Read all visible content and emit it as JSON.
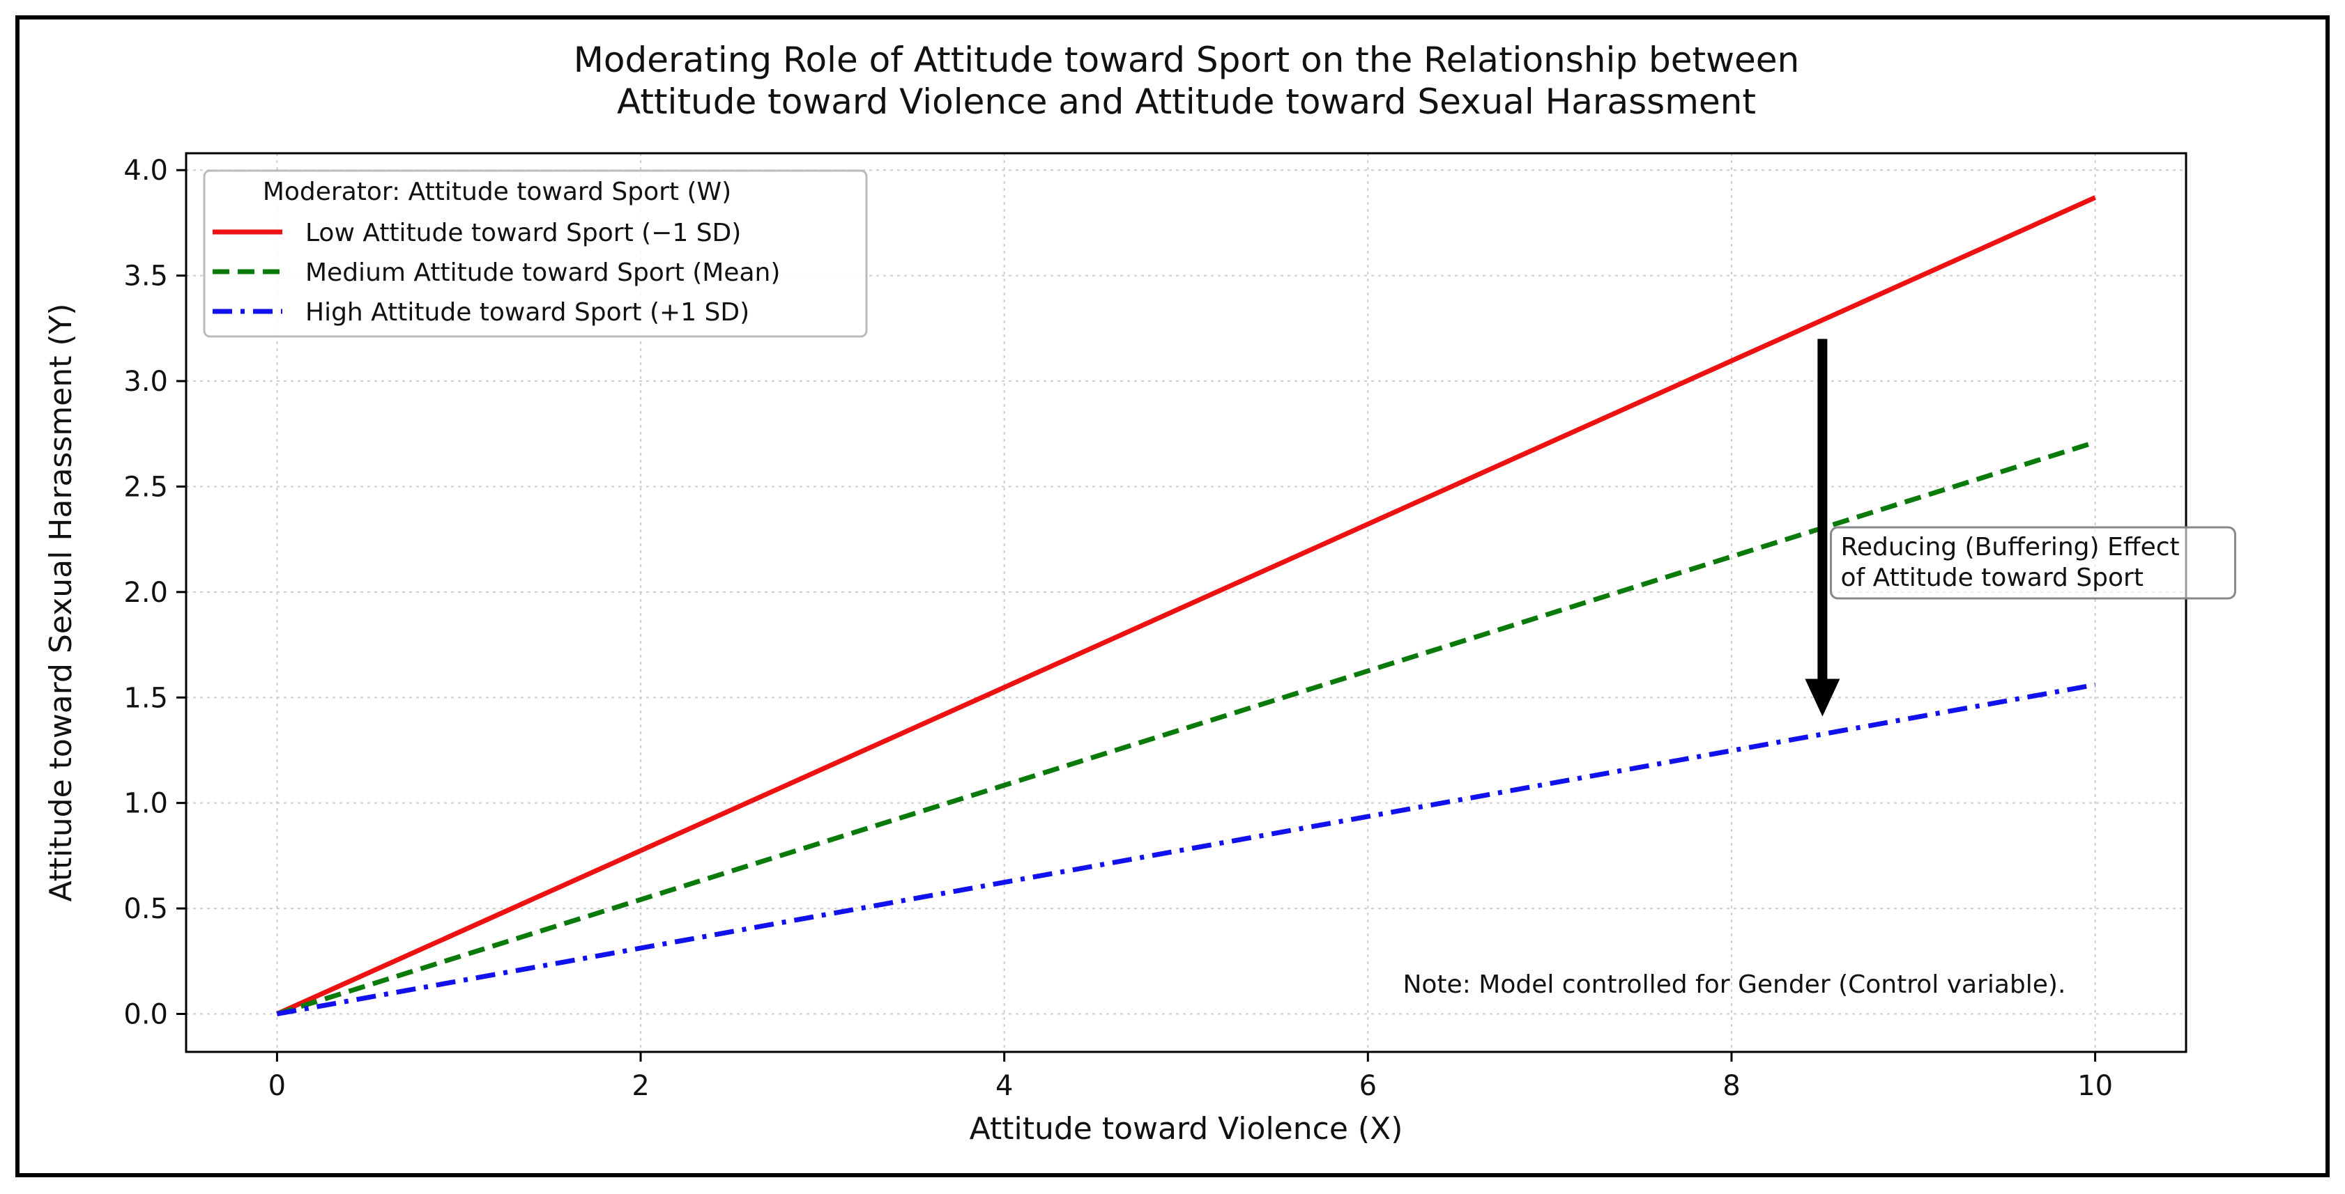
{
  "chart_data": {
    "type": "line",
    "title_lines": [
      "Moderating Role of Attitude toward Sport on the Relationship between",
      "Attitude toward Violence and Attitude toward Sexual Harassment"
    ],
    "xlabel": "Attitude toward Violence (X)",
    "ylabel": "Attitude toward Sexual Harassment (Y)",
    "xlim": [
      -0.5,
      10.5
    ],
    "ylim": [
      -0.18,
      4.08
    ],
    "xticks": [
      0,
      2,
      4,
      6,
      8,
      10
    ],
    "xtick_labels": [
      "0",
      "2",
      "4",
      "6",
      "8",
      "10"
    ],
    "yticks": [
      0.0,
      0.5,
      1.0,
      1.5,
      2.0,
      2.5,
      3.0,
      3.5,
      4.0
    ],
    "ytick_labels": [
      "0.0",
      "0.5",
      "1.0",
      "1.5",
      "2.0",
      "2.5",
      "3.0",
      "3.5",
      "4.0"
    ],
    "grid": true,
    "legend": {
      "title": "Moderator: Attitude toward Sport (W)",
      "placement": "upper-left"
    },
    "series": [
      {
        "name": "Low Attitude toward Sport (−1 SD)",
        "color": "#ee1111",
        "style": "solid",
        "x": [
          0,
          10
        ],
        "y": [
          0,
          3.87
        ]
      },
      {
        "name": "Medium Attitude toward Sport (Mean)",
        "color": "#0a7a0a",
        "style": "dashed",
        "x": [
          0,
          10
        ],
        "y": [
          0,
          2.71
        ]
      },
      {
        "name": "High Attitude toward Sport (+1 SD)",
        "color": "#1111ee",
        "style": "dashdot",
        "x": [
          0,
          10
        ],
        "y": [
          0,
          1.56
        ]
      }
    ],
    "annotation": {
      "text_lines": [
        "Reducing (Buffering) Effect",
        "of Attitude toward Sport"
      ],
      "arrow_x": 8.5,
      "arrow_y_start": 3.2,
      "arrow_y_end": 1.41,
      "text_x": 8.6,
      "text_y": 2.3
    },
    "note": {
      "text": "Note: Model controlled for Gender (Control variable).",
      "x": 9.8,
      "y": 0.14
    }
  }
}
